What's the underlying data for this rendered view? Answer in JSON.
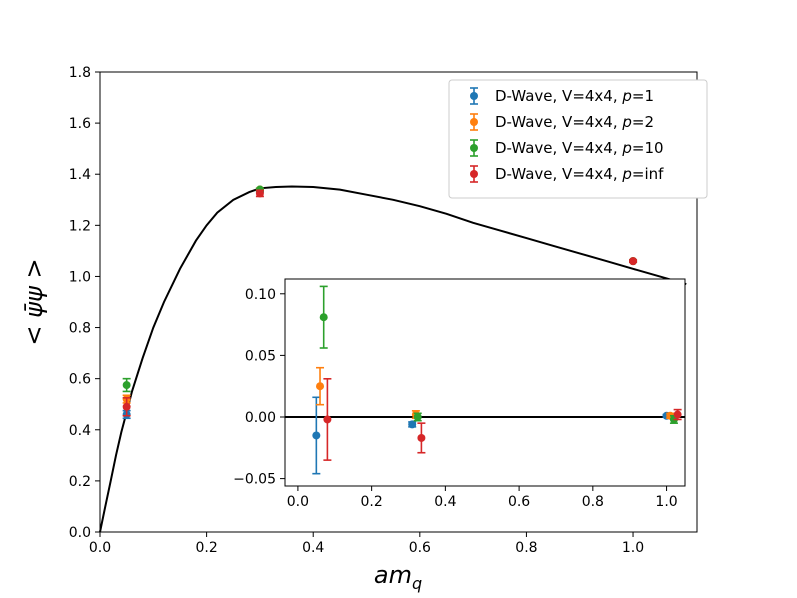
{
  "chart_data": [
    {
      "type": "scatter",
      "role": "main",
      "xlabel": {
        "base": "am",
        "sub": "q"
      },
      "ylabel": "< ψ̄ψ >",
      "xlim": [
        0.0,
        1.12
      ],
      "ylim": [
        0.0,
        1.8
      ],
      "xticks": [
        0.0,
        0.2,
        0.4,
        0.6,
        0.8,
        1.0
      ],
      "xtick_labels": [
        "0.0",
        "0.2",
        "0.4",
        "0.6",
        "0.8",
        "1.0"
      ],
      "yticks": [
        0.0,
        0.2,
        0.4,
        0.6,
        0.8,
        1.0,
        1.2,
        1.4,
        1.6,
        1.8
      ],
      "ytick_labels": [
        "0.0",
        "0.2",
        "0.4",
        "0.6",
        "0.8",
        "1.0",
        "1.2",
        "1.4",
        "1.6",
        "1.8"
      ],
      "curve": {
        "name": "exact",
        "x": [
          0.0,
          0.01,
          0.02,
          0.03,
          0.04,
          0.05,
          0.06,
          0.08,
          0.1,
          0.12,
          0.15,
          0.18,
          0.2,
          0.22,
          0.25,
          0.28,
          0.3,
          0.33,
          0.36,
          0.4,
          0.45,
          0.5,
          0.55,
          0.6,
          0.65,
          0.7,
          0.75,
          0.8,
          0.85,
          0.9,
          0.95,
          1.0,
          1.05,
          1.1
        ],
        "y": [
          0.0,
          0.1,
          0.2,
          0.3,
          0.39,
          0.47,
          0.55,
          0.68,
          0.8,
          0.9,
          1.03,
          1.14,
          1.2,
          1.25,
          1.3,
          1.33,
          1.345,
          1.35,
          1.352,
          1.35,
          1.34,
          1.32,
          1.3,
          1.275,
          1.245,
          1.21,
          1.18,
          1.15,
          1.12,
          1.09,
          1.06,
          1.03,
          1.0,
          0.97
        ]
      },
      "series": [
        {
          "name": "D-Wave, V=4x4, p=1",
          "color": "#1f77b4",
          "x": [
            0.05,
            0.3,
            1.0
          ],
          "y": [
            0.46,
            1.335,
            1.06
          ],
          "yerr": [
            0.015,
            0.005,
            0.004
          ]
        },
        {
          "name": "D-Wave, V=4x4, p=2",
          "color": "#ff7f0e",
          "x": [
            0.05,
            0.3,
            1.0
          ],
          "y": [
            0.52,
            1.34,
            1.06
          ],
          "yerr": [
            0.015,
            0.005,
            0.004
          ]
        },
        {
          "name": "D-Wave, V=4x4, p=10",
          "color": "#2ca02c",
          "x": [
            0.05,
            0.3,
            1.0
          ],
          "y": [
            0.575,
            1.34,
            1.06
          ],
          "yerr": [
            0.025,
            0.005,
            0.004
          ]
        },
        {
          "name": "D-Wave, V=4x4, p=inf",
          "color": "#d62728",
          "x": [
            0.05,
            0.3,
            1.0
          ],
          "y": [
            0.49,
            1.325,
            1.06
          ],
          "yerr": [
            0.035,
            0.012,
            0.004
          ]
        }
      ],
      "legend": {
        "position": "top-right",
        "entries": [
          {
            "prefix": "D-Wave, V=4x4, ",
            "param": "p",
            "suffix": "=1"
          },
          {
            "prefix": "D-Wave, V=4x4, ",
            "param": "p",
            "suffix": "=2"
          },
          {
            "prefix": "D-Wave, V=4x4, ",
            "param": "p",
            "suffix": "=10"
          },
          {
            "prefix": "D-Wave, V=4x4, ",
            "param": "p",
            "suffix": "=inf"
          }
        ]
      }
    },
    {
      "type": "scatter",
      "role": "inset",
      "xlim": [
        -0.035,
        1.05
      ],
      "ylim": [
        -0.056,
        0.112
      ],
      "xticks": [
        0.0,
        0.2,
        0.4,
        0.6,
        0.8,
        1.0
      ],
      "xtick_labels": [
        "0.0",
        "0.2",
        "0.4",
        "0.6",
        "0.8",
        "1.0"
      ],
      "yticks": [
        -0.05,
        0.0,
        0.05,
        0.1
      ],
      "ytick_labels": [
        "−0.05",
        "0.00",
        "0.05",
        "0.10"
      ],
      "zero_line": 0.0,
      "series": [
        {
          "name": "p=1",
          "color": "#1f77b4",
          "x": [
            0.05,
            0.31,
            1.0
          ],
          "y": [
            -0.015,
            -0.006,
            0.001
          ],
          "yerr": [
            0.031,
            0.002,
            0.001
          ]
        },
        {
          "name": "p=2",
          "color": "#ff7f0e",
          "x": [
            0.06,
            0.32,
            1.01
          ],
          "y": [
            0.025,
            0.002,
            0.001
          ],
          "yerr": [
            0.015,
            0.003,
            0.002
          ]
        },
        {
          "name": "p=10",
          "color": "#2ca02c",
          "x": [
            0.07,
            0.325,
            1.02
          ],
          "y": [
            0.081,
            0.0,
            -0.002
          ],
          "yerr": [
            0.025,
            0.003,
            0.003
          ]
        },
        {
          "name": "p=inf",
          "color": "#d62728",
          "x": [
            0.08,
            0.335,
            1.03
          ],
          "y": [
            -0.002,
            -0.017,
            0.002
          ],
          "yerr": [
            0.033,
            0.012,
            0.004
          ]
        }
      ]
    }
  ]
}
